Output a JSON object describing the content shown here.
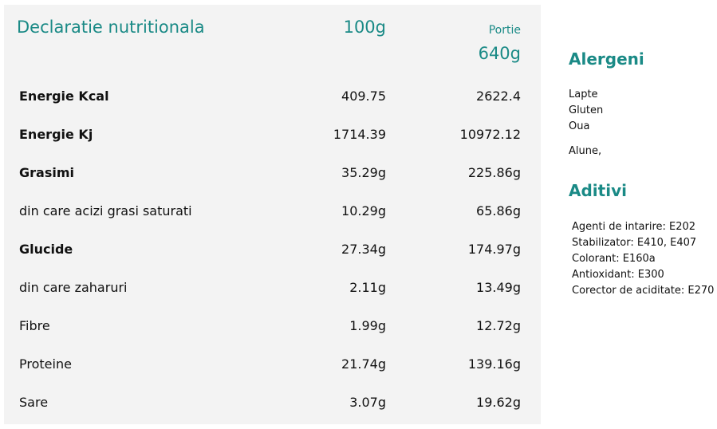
{
  "table": {
    "title": "Declaratie nutritionala",
    "col_100g": "100g",
    "portie_label": "Portie",
    "portie_value": "640g",
    "rows": [
      {
        "name": "Energie Kcal",
        "bold": true,
        "v100": "409.75",
        "vportie": "2622.4"
      },
      {
        "name": "Energie Kj",
        "bold": true,
        "v100": "1714.39",
        "vportie": "10972.12"
      },
      {
        "name": "Grasimi",
        "bold": true,
        "v100": "35.29g",
        "vportie": "225.86g"
      },
      {
        "name": "din care acizi grasi saturati",
        "bold": false,
        "v100": "10.29g",
        "vportie": "65.86g"
      },
      {
        "name": "Glucide",
        "bold": true,
        "v100": "27.34g",
        "vportie": "174.97g"
      },
      {
        "name": "din care zaharuri",
        "bold": false,
        "v100": "2.11g",
        "vportie": "13.49g"
      },
      {
        "name": "Fibre",
        "bold": false,
        "v100": "1.99g",
        "vportie": "12.72g"
      },
      {
        "name": "Proteine",
        "bold": false,
        "v100": "21.74g",
        "vportie": "139.16g"
      },
      {
        "name": "Sare",
        "bold": false,
        "v100": "3.07g",
        "vportie": "19.62g"
      }
    ]
  },
  "alergeni": {
    "heading": "Alergeni",
    "items": [
      "Lapte",
      "Gluten",
      "Oua"
    ],
    "extra": "Alune,"
  },
  "aditivi": {
    "heading": "Aditivi",
    "items": [
      "Agenti de intarire: E202",
      "Stabilizator: E410, E407",
      "Colorant: E160a",
      "Antioxidant: E300",
      "Corector de aciditate: E270"
    ]
  },
  "colors": {
    "accent": "#1a8a86",
    "panel_bg": "#f3f3f3"
  }
}
